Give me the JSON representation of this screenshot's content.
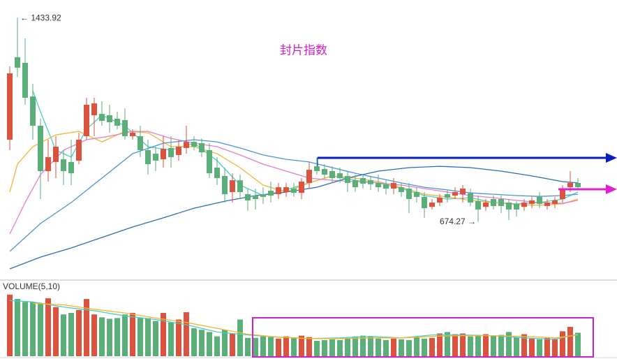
{
  "chart_data": {
    "type": "candlestick",
    "title": "封片指数",
    "ylim": [
      460,
      1500
    ],
    "up_color": "#d9533f",
    "down_color": "#5aae78",
    "open": [
      980,
      1287,
      1266,
      1141,
      1032,
      863,
      897,
      907,
      897,
      902,
      993,
      1071,
      1076,
      1071,
      1058,
      1053,
      993,
      993,
      941,
      928,
      907,
      949,
      923,
      949,
      972,
      967,
      941,
      876,
      845,
      785,
      829,
      777,
      772,
      777,
      790,
      777,
      785,
      798,
      782,
      819,
      881,
      871,
      863,
      855,
      845,
      829,
      837,
      829,
      819,
      814,
      798,
      803,
      798,
      785,
      767,
      730,
      746,
      777,
      772,
      777,
      780,
      751,
      730,
      759,
      759,
      746,
      741,
      730,
      741,
      767,
      733,
      741,
      759,
      803,
      819
    ],
    "high": [
      1253,
      1433.92,
      1357,
      1188,
      1058,
      980,
      993,
      941,
      980,
      1006,
      1136,
      1136,
      1123,
      1110,
      1084,
      1097,
      1019,
      1032,
      980,
      954,
      993,
      993,
      980,
      1032,
      993,
      985,
      967,
      915,
      876,
      855,
      850,
      798,
      798,
      803,
      824,
      819,
      819,
      819,
      837,
      897,
      915,
      889,
      881,
      876,
      863,
      850,
      850,
      845,
      850,
      829,
      837,
      819,
      819,
      803,
      785,
      759,
      777,
      793,
      803,
      811,
      798,
      772,
      759,
      772,
      772,
      759,
      751,
      759,
      767,
      785,
      759,
      767,
      811,
      863,
      837
    ],
    "low": [
      941,
      1214,
      1110,
      980,
      759,
      824,
      837,
      811,
      811,
      889,
      980,
      993,
      1032,
      1006,
      1019,
      980,
      980,
      915,
      850,
      863,
      876,
      876,
      902,
      928,
      941,
      915,
      837,
      811,
      746,
      746,
      759,
      715,
      720,
      741,
      746,
      759,
      767,
      767,
      759,
      798,
      850,
      837,
      819,
      819,
      785,
      785,
      798,
      793,
      785,
      777,
      777,
      767,
      707,
      746,
      689,
      720,
      733,
      746,
      759,
      746,
      733,
      674.27,
      715,
      720,
      707,
      681,
      694,
      715,
      725,
      725,
      720,
      725,
      746,
      785,
      793
    ],
    "close": [
      1227,
      1248,
      1136,
      1032,
      863,
      915,
      954,
      863,
      855,
      980,
      1110,
      1115,
      1050,
      1045,
      1032,
      993,
      1006,
      941,
      889,
      902,
      946,
      915,
      954,
      972,
      954,
      933,
      855,
      837,
      777,
      829,
      785,
      754,
      759,
      767,
      772,
      803,
      803,
      782,
      824,
      868,
      863,
      850,
      837,
      837,
      819,
      803,
      816,
      814,
      803,
      798,
      819,
      785,
      759,
      767,
      725,
      746,
      764,
      764,
      785,
      798,
      746,
      720,
      746,
      733,
      733,
      720,
      720,
      746,
      754,
      741,
      746,
      754,
      798,
      819,
      803
    ],
    "lines": [
      {
        "color": "#47cfc2",
        "x": [
          3,
          4,
          6,
          8,
          10,
          12,
          15,
          18,
          21,
          24,
          27,
          30,
          33,
          36,
          39,
          42,
          45,
          48,
          51,
          54,
          57,
          60,
          63,
          66,
          69,
          72,
          74
        ],
        "values": [
          1162,
          1084,
          941,
          915,
          1019,
          1071,
          1032,
          954,
          941,
          967,
          902,
          811,
          772,
          793,
          819,
          845,
          829,
          819,
          798,
          772,
          759,
          764,
          746,
          741,
          746,
          759,
          785
        ]
      },
      {
        "color": "#f4b530",
        "x": [
          0,
          1,
          3,
          6,
          9,
          12,
          15,
          18,
          21,
          24,
          27,
          30,
          33,
          36,
          39,
          42,
          45,
          48,
          51,
          54,
          57,
          60,
          63,
          66,
          69,
          72,
          74
        ],
        "values": [
          785,
          889,
          954,
          998,
          1011,
          972,
          1011,
          1006,
          954,
          954,
          928,
          876,
          811,
          785,
          819,
          845,
          837,
          824,
          803,
          777,
          767,
          754,
          746,
          738,
          736,
          741,
          759
        ]
      },
      {
        "color": "#e57ccd",
        "x": [
          0,
          2,
          4,
          7,
          10,
          13,
          16,
          18,
          21,
          24,
          27,
          30,
          33,
          36,
          39,
          42,
          45,
          48,
          51,
          54,
          57,
          60,
          63,
          66,
          69,
          72,
          74
        ],
        "values": [
          629,
          746,
          850,
          941,
          980,
          993,
          1011,
          1011,
          985,
          967,
          954,
          923,
          889,
          863,
          837,
          829,
          824,
          819,
          811,
          798,
          785,
          772,
          764,
          754,
          746,
          743,
          754
        ]
      },
      {
        "color": "#4b93d8",
        "x": [
          0,
          4,
          8,
          12,
          16,
          20,
          24,
          27,
          30,
          33,
          36,
          39,
          42,
          45,
          48,
          51,
          54,
          57,
          60,
          63,
          66,
          69,
          72,
          74
        ],
        "values": [
          564,
          668,
          746,
          837,
          928,
          967,
          980,
          972,
          949,
          923,
          907,
          897,
          876,
          855,
          837,
          819,
          803,
          793,
          782,
          777,
          772,
          769,
          772,
          777
        ]
      },
      {
        "color": "#2d6cb3",
        "x": [
          0,
          4,
          8,
          12,
          16,
          20,
          24,
          28,
          32,
          36,
          40,
          44,
          48,
          52,
          56,
          60,
          64,
          68,
          72,
          74
        ],
        "values": [
          499,
          543,
          577,
          616,
          655,
          689,
          725,
          751,
          772,
          785,
          803,
          837,
          863,
          876,
          881,
          876,
          863,
          845,
          824,
          819
        ]
      }
    ],
    "max_label": {
      "value": 1433.92,
      "label": "← 1433.92"
    },
    "min_label": {
      "value": 674.27,
      "label": "674.27 →"
    },
    "volume": {
      "title": "VOLUME(5,10)",
      "ylim": [
        0,
        100
      ],
      "values": [
        84,
        78,
        74,
        74,
        71,
        79,
        67,
        57,
        59,
        63,
        78,
        57,
        53,
        51,
        52,
        57,
        59,
        52,
        52,
        48,
        59,
        46,
        50,
        60,
        38,
        36,
        33,
        27,
        36,
        31,
        50,
        25,
        25,
        27,
        26,
        24,
        27,
        25,
        28,
        26,
        21,
        22,
        23,
        22,
        24,
        27,
        28,
        27,
        24,
        22,
        24,
        23,
        22,
        26,
        24,
        25,
        31,
        33,
        30,
        31,
        27,
        28,
        30,
        28,
        29,
        33,
        26,
        30,
        24,
        23,
        25,
        24,
        34,
        40,
        32
      ],
      "lines": [
        {
          "color": "#47cfc2",
          "x": [
            0,
            3,
            7,
            11,
            15,
            19,
            23,
            27,
            31,
            35,
            39,
            43,
            47,
            51,
            55,
            59,
            63,
            67,
            71,
            74
          ],
          "values": [
            76,
            74,
            67,
            62,
            55,
            50,
            43,
            33,
            29,
            26,
            24,
            25,
            27,
            25,
            29,
            29,
            28,
            25,
            23,
            30
          ]
        },
        {
          "color": "#f4b530",
          "x": [
            3,
            7,
            11,
            15,
            19,
            23,
            27,
            31,
            35,
            39,
            43,
            47,
            51,
            55,
            59,
            63,
            67,
            71,
            74
          ],
          "values": [
            72,
            70,
            64,
            59,
            52,
            46,
            38,
            30,
            26,
            24,
            24,
            25,
            25,
            27,
            28,
            28,
            27,
            25,
            29
          ]
        }
      ]
    }
  }
}
